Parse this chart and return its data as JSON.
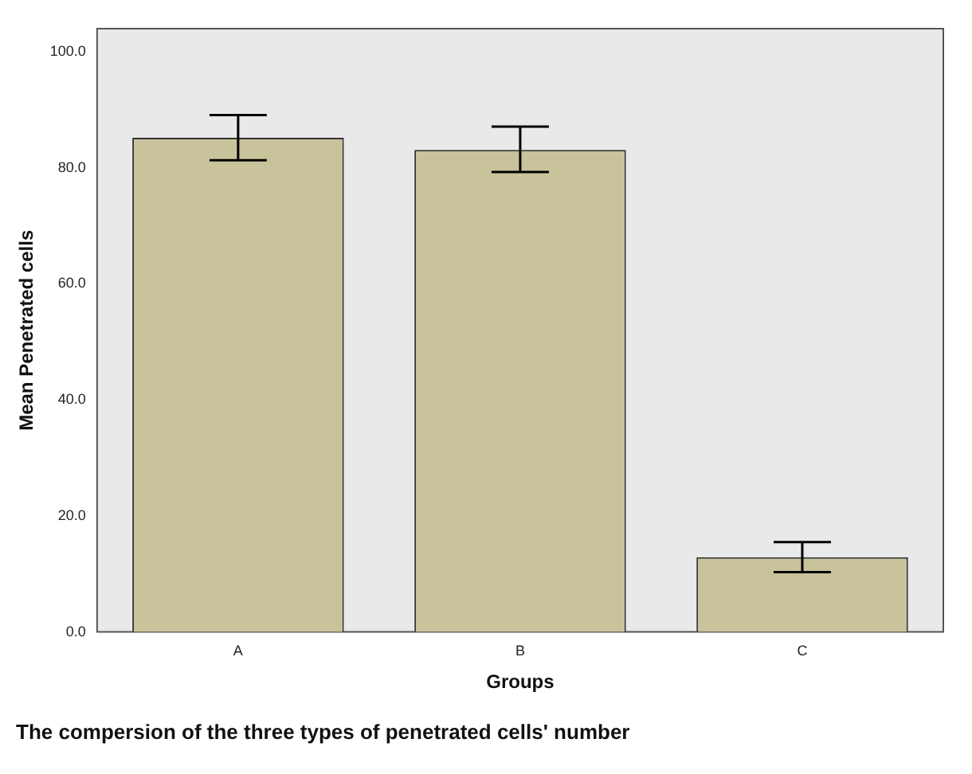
{
  "chart_data": {
    "type": "bar",
    "xlabel": "Groups",
    "ylabel": "Mean Penetrated cells",
    "categories": [
      "A",
      "B",
      "C"
    ],
    "values": [
      85.2,
      83.1,
      12.9
    ],
    "errors": [
      [
        81.3,
        89.1
      ],
      [
        79.3,
        87.1
      ],
      [
        10.3,
        15.5
      ]
    ],
    "color": "#c9c39b",
    "ylim": [
      0,
      104
    ],
    "yticks": [
      {
        "value": 0,
        "label": "0.0"
      },
      {
        "value": 20,
        "label": "20.0"
      },
      {
        "value": 40,
        "label": "40.0"
      },
      {
        "value": 60,
        "label": "60.0"
      },
      {
        "value": 80,
        "label": "80.0"
      },
      {
        "value": 100,
        "label": "100.0"
      }
    ],
    "grid": false,
    "legend": false,
    "annotations": [
      "The compersion of the three types of penetrated cells' number"
    ]
  }
}
